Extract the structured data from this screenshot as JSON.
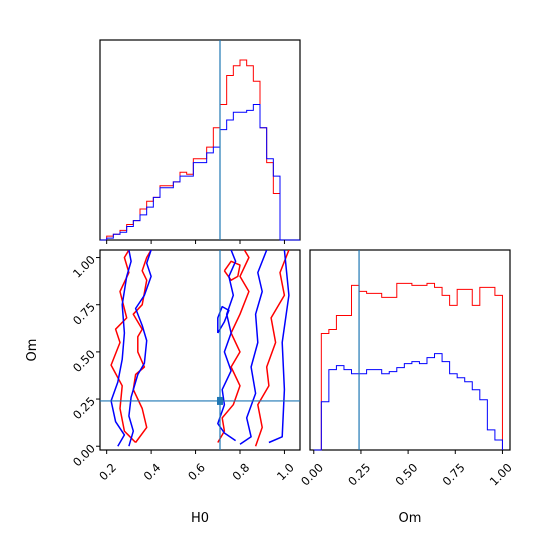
{
  "chart_data": {
    "type": "corner",
    "parameters": [
      "H0",
      "Om"
    ],
    "x_axis_labels": [
      "H0",
      "Om"
    ],
    "y_axis_labels": [
      "Om"
    ],
    "truth": {
      "H0": 0.71,
      "Om": 0.24,
      "color": "#1f77b4"
    },
    "series": [
      {
        "color": "#ff0000"
      },
      {
        "color": "#0000ff"
      }
    ],
    "ranges": {
      "H0": [
        0.17,
        1.07
      ],
      "Om": [
        -0.02,
        1.04
      ]
    },
    "ticks": {
      "H0": [
        "0.2",
        "0.4",
        "0.6",
        "0.8",
        "1.0"
      ],
      "Om_x": [
        "0.00",
        "0.25",
        "0.50",
        "0.75",
        "1.00"
      ],
      "Om_y": [
        "0.00",
        "0.25",
        "0.50",
        "0.75",
        "1.00"
      ]
    },
    "hist_H0": {
      "bin_edges": [
        0.17,
        0.2,
        0.23,
        0.26,
        0.29,
        0.32,
        0.35,
        0.38,
        0.41,
        0.44,
        0.47,
        0.5,
        0.53,
        0.56,
        0.59,
        0.62,
        0.65,
        0.68,
        0.71,
        0.74,
        0.77,
        0.8,
        0.83,
        0.86,
        0.89,
        0.92,
        0.95,
        0.98,
        1.01,
        1.04,
        1.07
      ],
      "red": [
        0,
        2,
        3,
        5,
        8,
        10,
        16,
        20,
        22,
        28,
        28,
        30,
        35,
        34,
        42,
        42,
        48,
        58,
        70,
        85,
        90,
        93,
        90,
        82,
        58,
        40,
        24,
        0,
        0,
        0
      ],
      "blue": [
        0,
        1,
        3,
        4,
        7,
        10,
        13,
        17,
        22,
        27,
        27,
        30,
        33,
        33,
        40,
        40,
        45,
        48,
        57,
        62,
        66,
        66,
        67,
        70,
        58,
        42,
        33,
        0,
        0,
        0
      ]
    },
    "hist_Om": {
      "bin_edges": [
        0.0,
        0.04,
        0.08,
        0.12,
        0.16,
        0.2,
        0.24,
        0.28,
        0.32,
        0.36,
        0.4,
        0.44,
        0.48,
        0.52,
        0.56,
        0.6,
        0.64,
        0.68,
        0.72,
        0.76,
        0.8,
        0.84,
        0.88,
        0.92,
        0.96,
        1.0
      ],
      "red": [
        0,
        58,
        60,
        67,
        67,
        82,
        79,
        78,
        78,
        76,
        76,
        83,
        83,
        82,
        82,
        83,
        81,
        77,
        72,
        80,
        80,
        72,
        81,
        81,
        77
      ],
      "blue": [
        0,
        24,
        40,
        42,
        40,
        38,
        38,
        40,
        40,
        38,
        39,
        41,
        43,
        44,
        43,
        46,
        48,
        44,
        38,
        36,
        34,
        30,
        25,
        10,
        5
      ]
    },
    "contours_H0_Om": {
      "red": [
        [
          [
            0.33,
            0.02
          ],
          [
            0.38,
            0.1
          ],
          [
            0.36,
            0.2
          ],
          [
            0.32,
            0.3
          ],
          [
            0.33,
            0.38
          ],
          [
            0.37,
            0.42
          ],
          [
            0.34,
            0.5
          ],
          [
            0.34,
            0.58
          ],
          [
            0.36,
            0.62
          ],
          [
            0.32,
            0.7
          ],
          [
            0.36,
            0.75
          ],
          [
            0.38,
            0.88
          ],
          [
            0.36,
            0.93
          ],
          [
            0.38,
            1.0
          ],
          [
            0.4,
            1.04
          ]
        ],
        [
          [
            0.33,
            0.02
          ],
          [
            0.28,
            0.08
          ],
          [
            0.26,
            0.2
          ],
          [
            0.27,
            0.32
          ],
          [
            0.22,
            0.43
          ],
          [
            0.26,
            0.55
          ],
          [
            0.24,
            0.62
          ],
          [
            0.29,
            0.68
          ],
          [
            0.26,
            0.82
          ],
          [
            0.3,
            0.92
          ],
          [
            0.28,
            1.0
          ],
          [
            0.3,
            1.04
          ]
        ],
        [
          [
            0.7,
            0.02
          ],
          [
            0.73,
            0.08
          ],
          [
            0.72,
            0.15
          ],
          [
            0.77,
            0.22
          ],
          [
            0.8,
            0.32
          ],
          [
            0.76,
            0.42
          ],
          [
            0.8,
            0.5
          ],
          [
            0.76,
            0.6
          ],
          [
            0.8,
            0.7
          ],
          [
            0.84,
            0.82
          ],
          [
            0.8,
            0.9
          ],
          [
            0.84,
            1.0
          ],
          [
            0.82,
            1.04
          ]
        ],
        [
          [
            0.87,
            0.0
          ],
          [
            0.9,
            0.1
          ],
          [
            0.88,
            0.22
          ],
          [
            0.93,
            0.32
          ],
          [
            0.92,
            0.42
          ],
          [
            0.96,
            0.55
          ],
          [
            0.94,
            0.68
          ],
          [
            1.0,
            0.8
          ],
          [
            0.98,
            0.92
          ],
          [
            1.02,
            1.04
          ]
        ],
        [
          [
            0.73,
            0.93
          ],
          [
            0.76,
            0.98
          ],
          [
            0.8,
            0.96
          ],
          [
            0.79,
            0.9
          ],
          [
            0.76,
            0.88
          ],
          [
            0.73,
            0.93
          ]
        ]
      ],
      "blue": [
        [
          [
            0.25,
            0.0
          ],
          [
            0.28,
            0.06
          ],
          [
            0.24,
            0.13
          ],
          [
            0.22,
            0.24
          ],
          [
            0.25,
            0.34
          ],
          [
            0.27,
            0.46
          ],
          [
            0.28,
            0.6
          ],
          [
            0.27,
            0.75
          ],
          [
            0.29,
            0.9
          ],
          [
            0.31,
            0.98
          ],
          [
            0.3,
            1.04
          ]
        ],
        [
          [
            0.3,
            0.0
          ],
          [
            0.32,
            0.08
          ],
          [
            0.3,
            0.16
          ],
          [
            0.31,
            0.26
          ],
          [
            0.34,
            0.38
          ],
          [
            0.37,
            0.44
          ],
          [
            0.38,
            0.56
          ],
          [
            0.36,
            0.64
          ],
          [
            0.33,
            0.73
          ],
          [
            0.37,
            0.8
          ],
          [
            0.4,
            0.9
          ],
          [
            0.38,
            0.97
          ],
          [
            0.4,
            1.04
          ]
        ],
        [
          [
            0.78,
            0.03
          ],
          [
            0.73,
            0.07
          ],
          [
            0.7,
            0.12
          ],
          [
            0.73,
            0.22
          ],
          [
            0.72,
            0.3
          ],
          [
            0.76,
            0.4
          ],
          [
            0.73,
            0.5
          ],
          [
            0.76,
            0.6
          ],
          [
            0.74,
            0.7
          ],
          [
            0.77,
            0.8
          ],
          [
            0.75,
            0.9
          ],
          [
            0.78,
            0.98
          ],
          [
            0.76,
            1.04
          ]
        ],
        [
          [
            0.8,
            0.01
          ],
          [
            0.85,
            0.05
          ],
          [
            0.83,
            0.15
          ],
          [
            0.87,
            0.28
          ],
          [
            0.85,
            0.42
          ],
          [
            0.88,
            0.55
          ],
          [
            0.87,
            0.7
          ],
          [
            0.9,
            0.82
          ],
          [
            0.88,
            0.92
          ],
          [
            0.92,
            1.04
          ]
        ],
        [
          [
            0.93,
            0.02
          ],
          [
            0.99,
            0.05
          ],
          [
            1.0,
            0.3
          ],
          [
            0.99,
            0.55
          ],
          [
            1.02,
            0.8
          ],
          [
            1.0,
            1.04
          ]
        ],
        [
          [
            0.7,
            0.6
          ],
          [
            0.73,
            0.66
          ],
          [
            0.75,
            0.72
          ],
          [
            0.72,
            0.74
          ],
          [
            0.7,
            0.68
          ],
          [
            0.7,
            0.6
          ]
        ]
      ]
    }
  }
}
